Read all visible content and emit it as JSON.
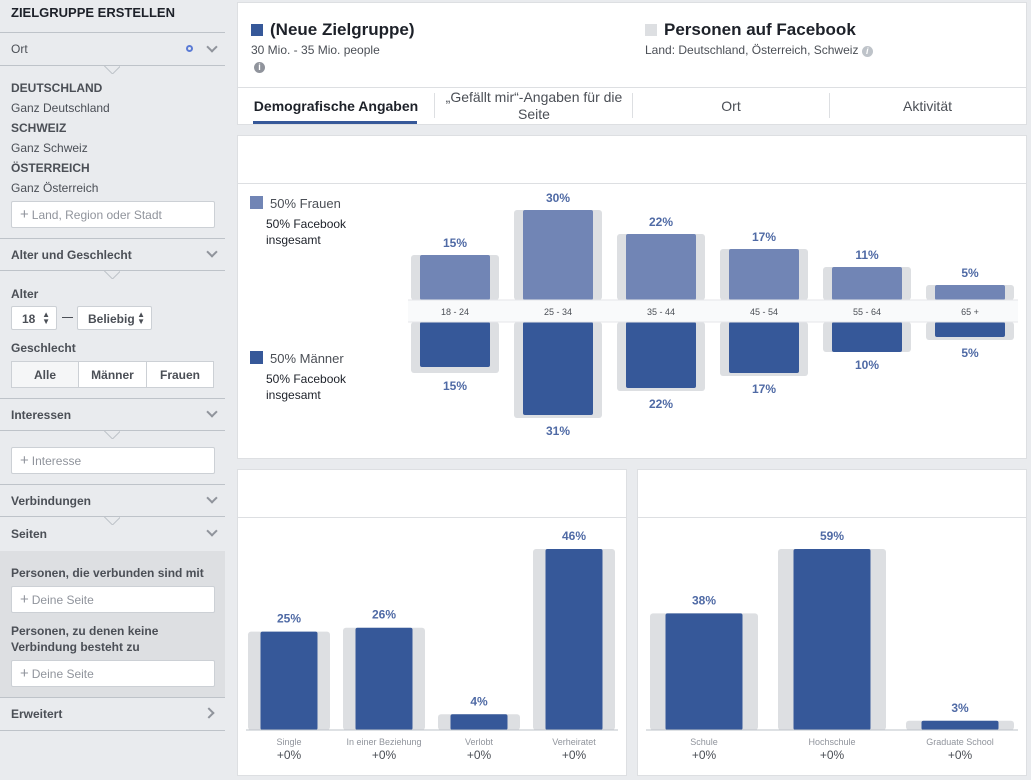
{
  "sidebar": {
    "title": "ZIELGRUPPE ERSTELLEN",
    "location": {
      "header": "Ort",
      "countries": [
        {
          "name": "DEUTSCHLAND",
          "sub": "Ganz Deutschland"
        },
        {
          "name": "SCHWEIZ",
          "sub": "Ganz Schweiz"
        },
        {
          "name": "ÖSTERREICH",
          "sub": "Ganz Österreich"
        }
      ],
      "placeholder": "Land, Region oder Stadt"
    },
    "age_gender": {
      "header": "Alter und Geschlecht",
      "age_label": "Alter",
      "age_from": "18",
      "age_to": "Beliebig",
      "gender_label": "Geschlecht",
      "gender_options": [
        "Alle",
        "Männer",
        "Frauen"
      ],
      "gender_selected": "Alle"
    },
    "interests": {
      "header": "Interessen",
      "placeholder": "Interesse"
    },
    "connections": {
      "header": "Verbindungen"
    },
    "pages": {
      "header": "Seiten",
      "connected_label": "Personen, die verbunden sind mit",
      "connected_placeholder": "Deine Seite",
      "not_connected_label": "Personen, zu denen keine Verbindung besteht zu",
      "not_connected_placeholder": "Deine Seite"
    },
    "advanced": {
      "header": "Erweitert"
    }
  },
  "audience": {
    "title": "(Neue Zielgruppe)",
    "size": "30 Mio. - 35 Mio. people",
    "color": "#365899"
  },
  "comparison": {
    "title": "Personen auf Facebook",
    "subtitle": "Land: Deutschland, Österreich, Schweiz",
    "color": "#dddfe2"
  },
  "tabs": [
    "Demografische Angaben",
    "„Gefällt mir“-Angaben für die Seite",
    "Ort",
    "Aktivität"
  ],
  "active_tab": "Demografische Angaben",
  "colors": {
    "women": "#7185b5",
    "men": "#365899",
    "baseline": "#dddfe2",
    "label": "#4f6aa5"
  },
  "chart_data": [
    {
      "type": "bar",
      "legend": [
        {
          "name": "50% Frauen",
          "sub": "50% Facebook insgesamt"
        },
        {
          "name": "50% Männer",
          "sub": "50% Facebook insgesamt"
        }
      ],
      "categories": [
        "18 - 24",
        "25 - 34",
        "35 - 44",
        "45 - 54",
        "55 - 64",
        "65 +"
      ],
      "series": [
        {
          "name": "50% Frauen",
          "values": [
            15,
            30,
            22,
            17,
            11,
            5
          ],
          "labels": [
            "15%",
            "30%",
            "22%",
            "17%",
            "11%",
            "5%"
          ]
        },
        {
          "name": "50% Männer",
          "values": [
            15,
            31,
            22,
            17,
            10,
            5
          ],
          "labels": [
            "15%",
            "31%",
            "22%",
            "17%",
            "10%",
            "5%"
          ]
        }
      ],
      "baseline_women": [
        15,
        30,
        22,
        17,
        11,
        5
      ],
      "baseline_men": [
        17,
        32,
        23,
        18,
        10,
        6
      ]
    },
    {
      "type": "bar",
      "categories": [
        "Single",
        "In einer Beziehung",
        "Verlobt",
        "Verheiratet"
      ],
      "values": [
        25,
        26,
        4,
        46
      ],
      "labels": [
        "25%",
        "26%",
        "4%",
        "46%"
      ],
      "baseline": [
        25,
        26,
        4,
        46
      ],
      "deltas": [
        "+0%",
        "+0%",
        "+0%",
        "+0%"
      ],
      "ylim": [
        0,
        46
      ]
    },
    {
      "type": "bar",
      "categories": [
        "Schule",
        "Hochschule",
        "Graduate School"
      ],
      "values": [
        38,
        59,
        3
      ],
      "labels": [
        "38%",
        "59%",
        "3%"
      ],
      "baseline": [
        38,
        59,
        3
      ],
      "deltas": [
        "+0%",
        "+0%",
        "+0%"
      ],
      "ylim": [
        0,
        59
      ]
    }
  ]
}
